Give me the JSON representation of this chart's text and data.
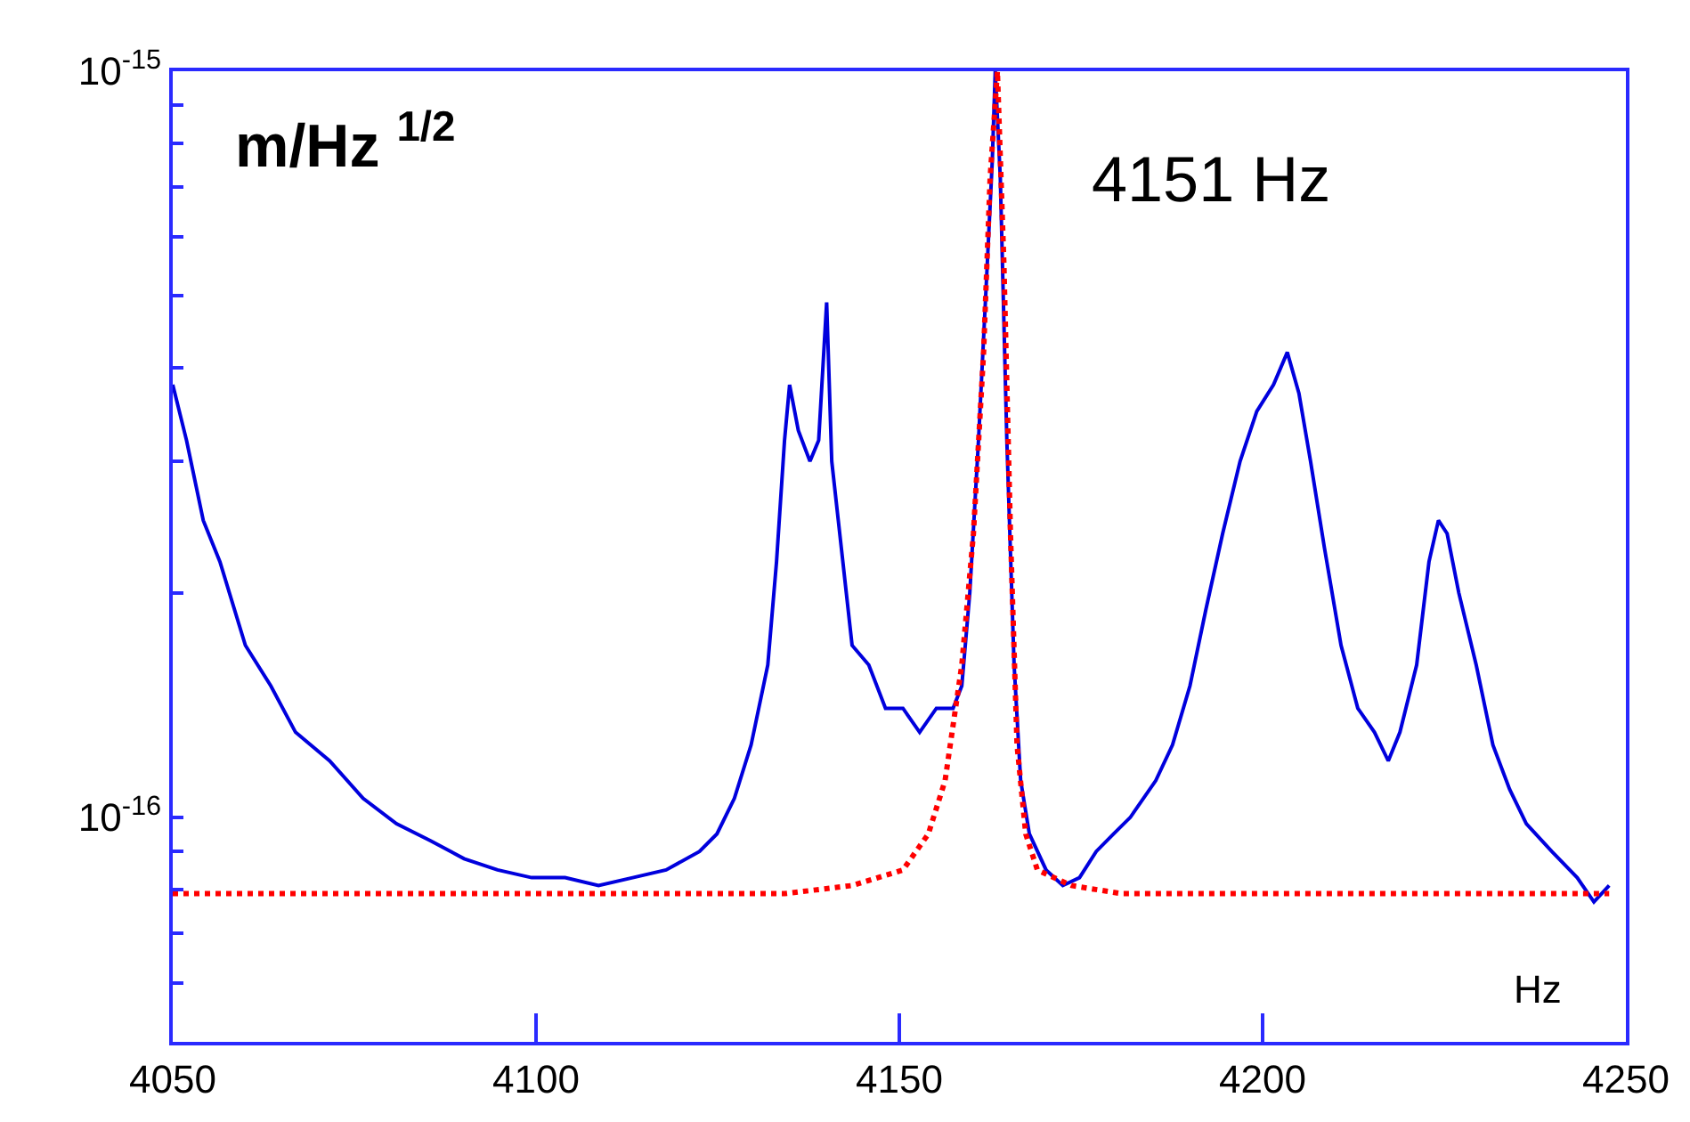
{
  "chart_data": {
    "type": "line",
    "log": "y",
    "xlim": [
      4050,
      4250
    ],
    "xticks": [
      4050,
      4100,
      4150,
      4200,
      4250
    ],
    "ylim": [
      5e-17,
      1e-15
    ],
    "yticks": [
      {
        "value": 1e-15,
        "label": "10$^{-15}$"
      },
      {
        "value": 9e-16,
        "label": null
      },
      {
        "value": 8e-16,
        "label": null
      },
      {
        "value": 7e-16,
        "label": null
      },
      {
        "value": 6e-16,
        "label": null
      },
      {
        "value": 5e-16,
        "label": null
      },
      {
        "value": 4e-16,
        "label": null
      },
      {
        "value": 3e-16,
        "label": null
      },
      {
        "value": 2e-16,
        "label": null
      },
      {
        "value": 1e-16,
        "label": "10$^{-16}$"
      },
      {
        "value": 9e-17,
        "label": null
      },
      {
        "value": 8e-17,
        "label": null
      },
      {
        "value": 7e-17,
        "label": null
      },
      {
        "value": 6e-17,
        "label": null
      }
    ],
    "annotations": [
      "m/Hz $^{1/2}$",
      "4151 Hz",
      "Hz"
    ],
    "series": [
      {
        "color": "#0000dd",
        "line_style": "solid",
        "x": [
          4050,
          4051.9,
          4054.2,
          4056.5,
          4060,
          4063.5,
          4066.9,
          4071.6,
          4076.2,
          4080.8,
          4085.5,
          4090.1,
          4094.7,
          4099.4,
          4104,
          4108.6,
          4113.3,
          4117.9,
          4122.5,
          4124.9,
          4127.3,
          4129.6,
          4131.9,
          4133.1,
          4134.2,
          4134.9,
          4136.1,
          4137.7,
          4138.9,
          4140.0,
          4140.7,
          4141.6,
          4143.5,
          4145.8,
          4148.1,
          4150.5,
          4152.8,
          4155.1,
          4157.4,
          4158.6,
          4159.7,
          4160.9,
          4162.1,
          4162.8,
          4163.2,
          4163.9,
          4164.8,
          4165.8,
          4166.7,
          4167.9,
          4170.2,
          4172.5,
          4174.8,
          4177.1,
          4179.5,
          4181.8,
          4185.3,
          4187.6,
          4190,
          4192.2,
          4194.5,
          4196.9,
          4199.2,
          4201.5,
          4203.4,
          4205,
          4206.6,
          4208.5,
          4210.8,
          4213.1,
          4215.4,
          4217.3,
          4218.9,
          4221.2,
          4222.9,
          4224.2,
          4225.4,
          4227,
          4229.4,
          4231.7,
          4234,
          4236.3,
          4239.8,
          4243.3,
          4245.6,
          4247.7
        ],
        "values": [
          3.8e-16,
          3.2e-16,
          2.5e-16,
          2.2e-16,
          1.7e-16,
          1.5e-16,
          1.3e-16,
          1.19e-16,
          1.06e-16,
          9.8e-17,
          9.3e-17,
          8.8e-17,
          8.5e-17,
          8.3e-17,
          8.3e-17,
          8.1e-17,
          8.3e-17,
          8.5e-17,
          9e-17,
          9.5e-17,
          1.06e-16,
          1.25e-16,
          1.6e-16,
          2.2e-16,
          3.2e-16,
          3.8e-16,
          3.3e-16,
          3e-16,
          3.2e-16,
          4.9e-16,
          3e-16,
          2.5e-16,
          1.7e-16,
          1.6e-16,
          1.4e-16,
          1.4e-16,
          1.3e-16,
          1.4e-16,
          1.4e-16,
          1.5e-16,
          2e-16,
          3.2e-16,
          5.5e-16,
          7.6e-16,
          1e-15,
          7.2e-16,
          3.2e-16,
          1.6e-16,
          1.12e-16,
          9.5e-17,
          8.5e-17,
          8.1e-17,
          8.3e-17,
          9e-17,
          9.5e-17,
          1e-16,
          1.12e-16,
          1.25e-16,
          1.5e-16,
          1.9e-16,
          2.4e-16,
          3e-16,
          3.5e-16,
          3.8e-16,
          4.2e-16,
          3.7e-16,
          3e-16,
          2.3e-16,
          1.7e-16,
          1.4e-16,
          1.3e-16,
          1.19e-16,
          1.3e-16,
          1.6e-16,
          2.2e-16,
          2.5e-16,
          2.4e-16,
          2e-16,
          1.6e-16,
          1.25e-16,
          1.09e-16,
          9.8e-17,
          9e-17,
          8.3e-17,
          7.7e-17,
          8.1e-17
        ]
      },
      {
        "color": "#ff0000",
        "line_style": "dotted",
        "x": [
          4050,
          4134.2,
          4143.5,
          4150.5,
          4154.0,
          4156.3,
          4158.6,
          4160.2,
          4161.6,
          4162.5,
          4163.5,
          4164.4,
          4165.3,
          4166.2,
          4167.4,
          4169.0,
          4173.7,
          4180.6,
          4247.7
        ],
        "values": [
          7.9e-17,
          7.9e-17,
          8.1e-17,
          8.5e-17,
          9.5e-17,
          1.12e-16,
          1.6e-16,
          2.4e-16,
          4.2e-16,
          7.2e-16,
          1e-15,
          5.5e-16,
          2.4e-16,
          1.25e-16,
          9.5e-17,
          8.5e-17,
          8.1e-17,
          7.9e-17,
          7.9e-17
        ]
      }
    ]
  }
}
